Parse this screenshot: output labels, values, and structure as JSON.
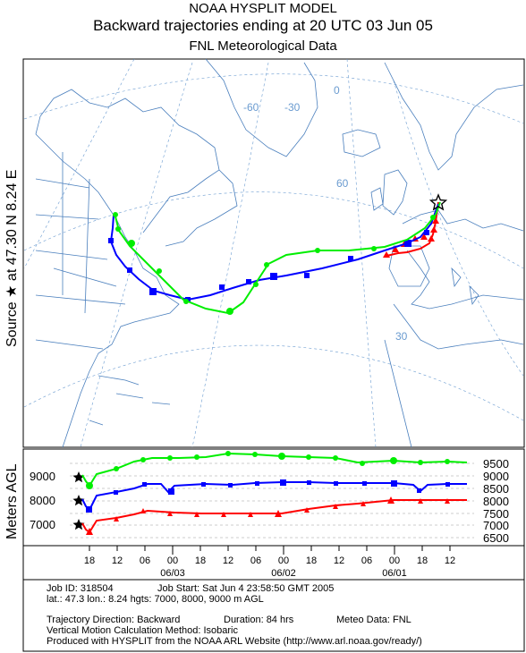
{
  "header": {
    "line1": "NOAA HYSPLIT MODEL",
    "line2": "Backward trajectories ending at 20 UTC 03 Jun 05",
    "line3": "FNL  Meteorological Data"
  },
  "side_label": "Source ★ at   47.30 N    8.24 E",
  "map": {
    "grid_labels": [
      "0",
      "-30",
      "-60",
      "60",
      "30"
    ],
    "source_marker_icon": "star-icon"
  },
  "height_panel": {
    "ylabel": "Meters AGL",
    "left_ticks": [
      "9000",
      "8000",
      "7000"
    ],
    "right_ticks": [
      "9500",
      "9000",
      "8500",
      "8000",
      "7500",
      "7000",
      "6500"
    ],
    "time_ticks": [
      "18",
      "12",
      "06",
      "00",
      "18",
      "12",
      "06",
      "00",
      "18",
      "12",
      "06",
      "00",
      "18",
      "12"
    ],
    "date_labels": [
      "06/03",
      "06/02",
      "06/01"
    ]
  },
  "series_colors": {
    "red": "#ff0000",
    "blue": "#0000ff",
    "green": "#00ee00"
  },
  "info": {
    "job_id": "Job ID: 318504",
    "job_start": "Job Start: Sat Jun  4 23:58:50 GMT 2005",
    "location": "lat.: 47.3  lon.: 8.24  hgts: 7000, 8000, 9000 m AGL",
    "direction": "Trajectory Direction: Backward",
    "duration": "Duration: 84 hrs",
    "meteo": "Meteo Data: FNL",
    "vertical": "Vertical Motion Calculation Method: Isobaric",
    "produced": "Produced with HYSPLIT from the NOAA ARL Website (http://www.arl.noaa.gov/ready/)"
  }
}
